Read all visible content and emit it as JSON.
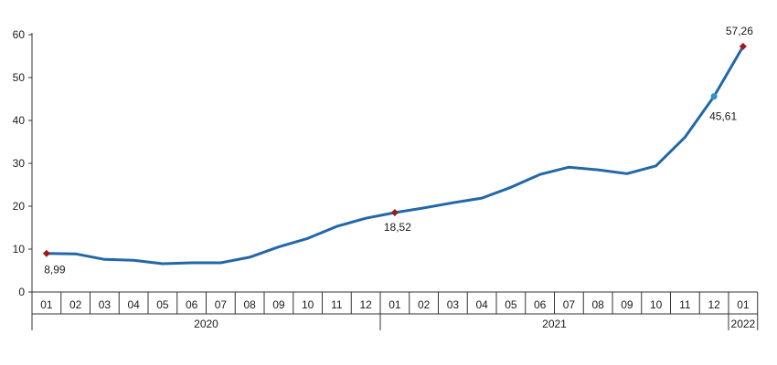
{
  "chart_data": {
    "type": "line",
    "title": "",
    "xlabel": "",
    "ylabel": "",
    "ylim": [
      0,
      60
    ],
    "yticks": [
      "0",
      "10",
      "20",
      "30",
      "40",
      "50",
      "60"
    ],
    "grid": false,
    "legend": "none",
    "categories": [
      "01",
      "02",
      "03",
      "04",
      "05",
      "06",
      "07",
      "08",
      "09",
      "10",
      "11",
      "12",
      "01",
      "02",
      "03",
      "04",
      "05",
      "06",
      "07",
      "08",
      "09",
      "10",
      "11",
      "12",
      "01"
    ],
    "year_groups": [
      {
        "label": "2020",
        "count": 12
      },
      {
        "label": "2021",
        "count": 12
      },
      {
        "label": "2022",
        "count": 1
      }
    ],
    "series": [
      {
        "values": [
          8.99,
          8.9,
          7.6,
          7.4,
          6.6,
          6.8,
          6.8,
          8.1,
          10.5,
          12.5,
          15.3,
          17.2,
          18.52,
          19.6,
          20.8,
          21.9,
          24.4,
          27.4,
          29.1,
          28.5,
          27.6,
          29.4,
          36.1,
          45.61,
          57.26
        ],
        "color": "#2267a8"
      }
    ],
    "data_labels": [
      {
        "index": 0,
        "text": "8,99",
        "marker": "diamond",
        "color": "#a01818"
      },
      {
        "index": 12,
        "text": "18,52",
        "marker": "diamond",
        "color": "#a01818"
      },
      {
        "index": 23,
        "text": "45,61",
        "marker": "circle",
        "color": "#2f95c9"
      },
      {
        "index": 24,
        "text": "57,26",
        "marker": "diamond",
        "color": "#a01818"
      }
    ]
  }
}
